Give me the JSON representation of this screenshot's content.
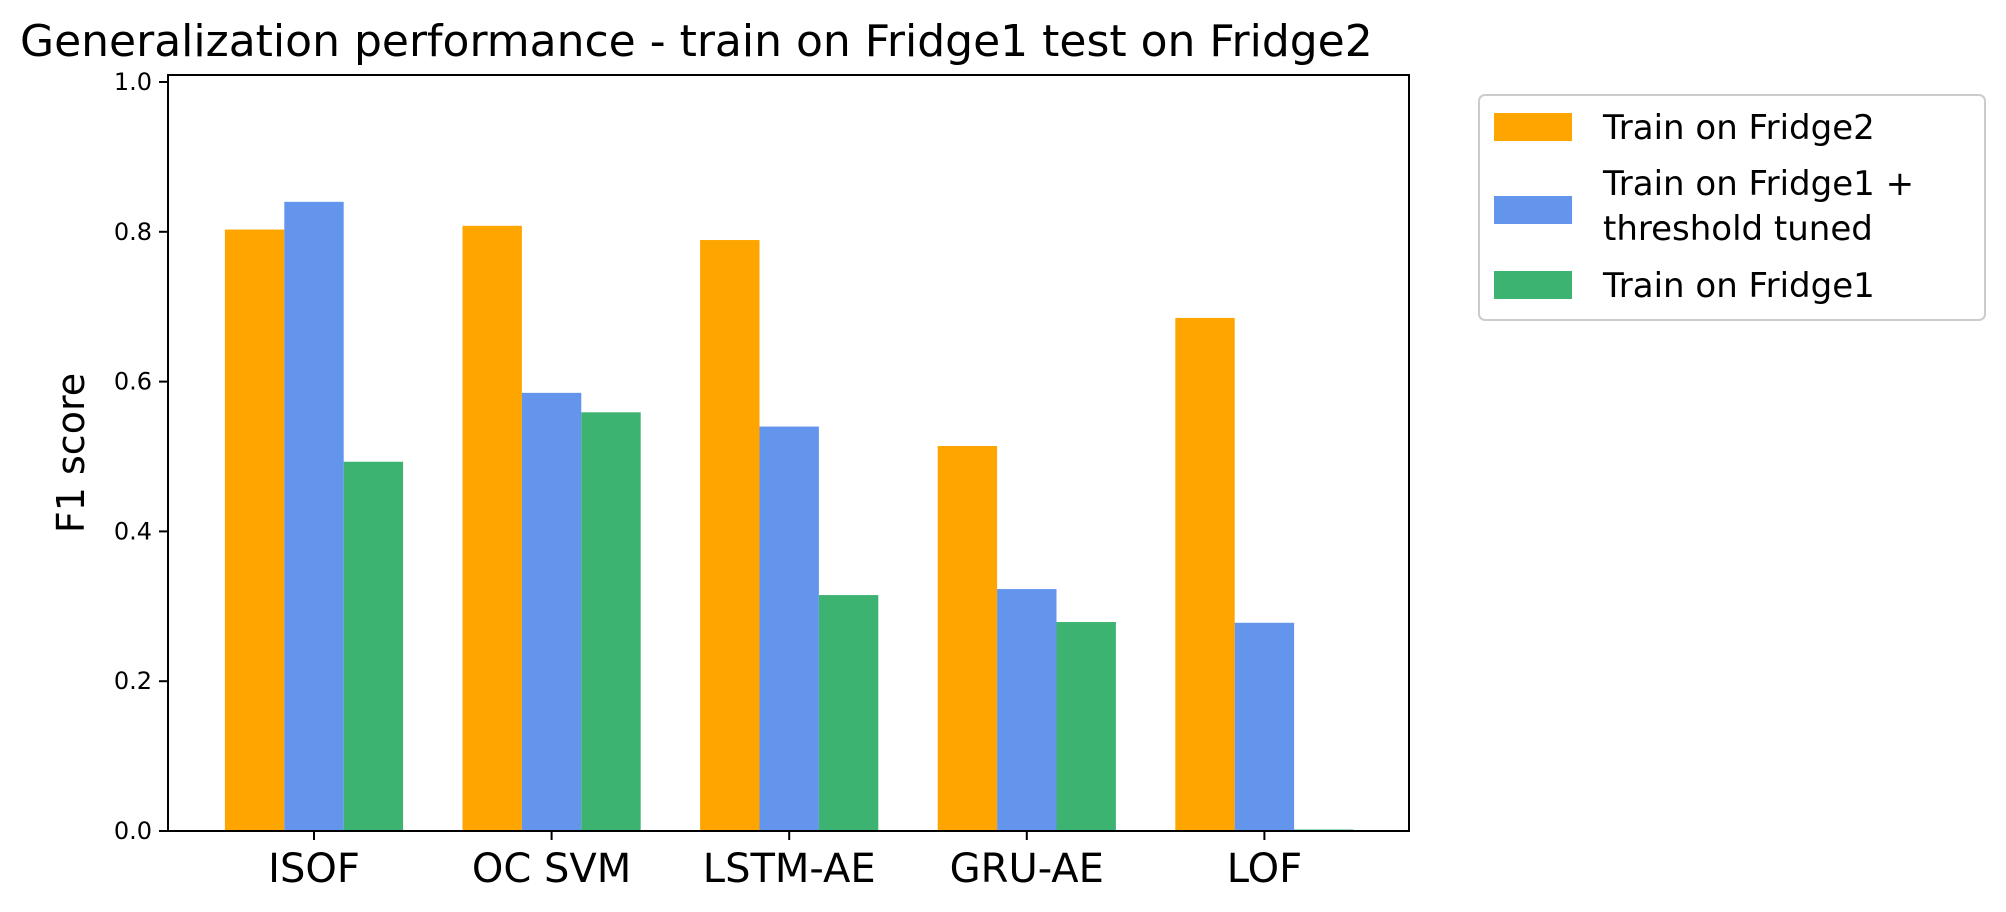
{
  "chart_data": {
    "type": "bar",
    "title": "Generalization performance - train on Fridge1 test on Fridge2",
    "xlabel": "",
    "ylabel": "F1 score",
    "ylim": [
      0,
      1.0
    ],
    "yticks": [
      "0.0",
      "0.2",
      "0.4",
      "0.6",
      "0.8",
      "1.0"
    ],
    "categories": [
      "ISOF",
      "OC SVM",
      "LSTM-AE",
      "GRU-AE",
      "LOF"
    ],
    "series": [
      {
        "name": "Train on Fridge2",
        "color": "#ffa500",
        "values": [
          0.803,
          0.808,
          0.789,
          0.514,
          0.685
        ]
      },
      {
        "name": "Train on Fridge1 + threshold tuned",
        "name_lines": [
          "Train on Fridge1 +",
          "threshold tuned"
        ],
        "color": "#6495ed",
        "values": [
          0.84,
          0.585,
          0.54,
          0.323,
          0.278
        ]
      },
      {
        "name": "Train on Fridge1",
        "color": "#3cb371",
        "values": [
          0.493,
          0.559,
          0.315,
          0.279,
          0.002
        ]
      }
    ],
    "grid": false,
    "legend": "outside-top-right"
  }
}
